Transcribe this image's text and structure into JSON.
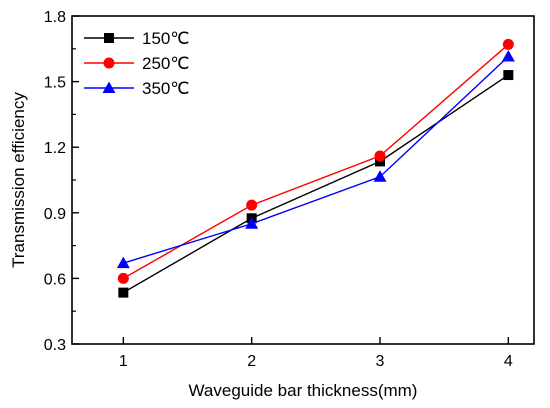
{
  "chart_data": {
    "type": "line",
    "title": "",
    "xlabel": "Waveguide bar thickness(mm)",
    "ylabel": "Transmission efficiency",
    "x": [
      1,
      2,
      3,
      4
    ],
    "xticks": [
      "1",
      "2",
      "3",
      "4"
    ],
    "xlim": [
      0.6,
      4.2
    ],
    "ylim": [
      0.3,
      1.8
    ],
    "yticks": [
      "0.3",
      "0.6",
      "0.9",
      "1.2",
      "1.5",
      "1.8"
    ],
    "grid": false,
    "legend_position": "top-left",
    "series": [
      {
        "name": "150℃",
        "color": "#000000",
        "marker": "square",
        "values": [
          0.535,
          0.875,
          1.135,
          1.53
        ]
      },
      {
        "name": "250℃",
        "color": "#ff0000",
        "marker": "circle",
        "values": [
          0.6,
          0.935,
          1.16,
          1.67
        ]
      },
      {
        "name": "350℃",
        "color": "#0000ff",
        "marker": "triangle",
        "values": [
          0.67,
          0.85,
          1.065,
          1.615
        ]
      }
    ]
  }
}
